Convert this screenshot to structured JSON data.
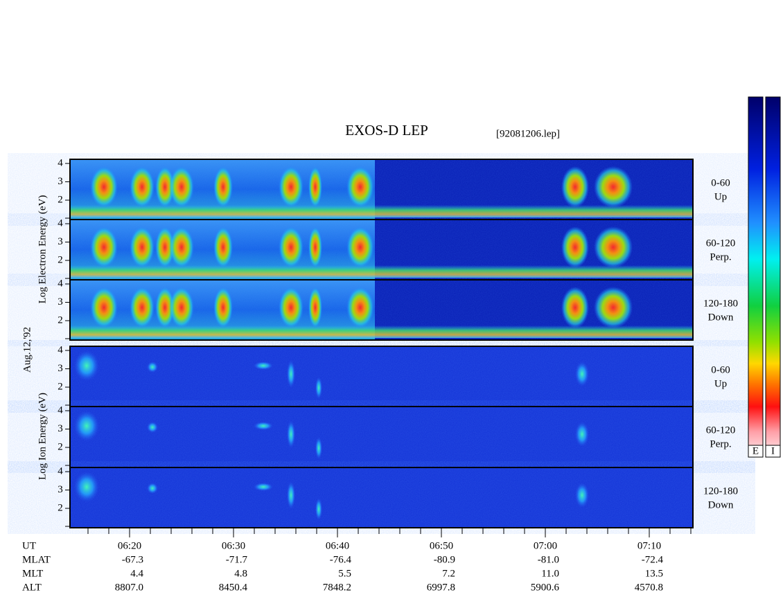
{
  "header": {
    "title": "EXOS-D LEP",
    "file": "[92081206.lep]"
  },
  "date": "Aug.12,'92",
  "electron": {
    "axis_label": "Log Electron Energy (eV)",
    "panels": [
      {
        "pitch": "0-60",
        "direction": "Up"
      },
      {
        "pitch": "60-120",
        "direction": "Perp."
      },
      {
        "pitch": "120-180",
        "direction": "Down"
      }
    ]
  },
  "ion": {
    "axis_label": "Log Ion Energy (eV)",
    "panels": [
      {
        "pitch": "0-60",
        "direction": "Up"
      },
      {
        "pitch": "60-120",
        "direction": "Perp."
      },
      {
        "pitch": "120-180",
        "direction": "Down"
      }
    ]
  },
  "energy_ticks": [
    "4",
    "3",
    "2"
  ],
  "colorbars": [
    "E",
    "I"
  ],
  "orbit": {
    "labels": [
      "UT",
      "MLAT",
      "MLT",
      "ALT"
    ],
    "columns": [
      [
        "06:20",
        "-67.3",
        "4.4",
        "8807.0"
      ],
      [
        "06:30",
        "-71.7",
        "4.8",
        "8450.4"
      ],
      [
        "06:40",
        "-76.4",
        "5.5",
        "7848.2"
      ],
      [
        "06:50",
        "-80.9",
        "7.2",
        "6997.8"
      ],
      [
        "07:00",
        "-81.0",
        "11.0",
        "5900.6"
      ],
      [
        "07:10",
        "-72.4",
        "13.5",
        "4570.8"
      ]
    ]
  }
}
